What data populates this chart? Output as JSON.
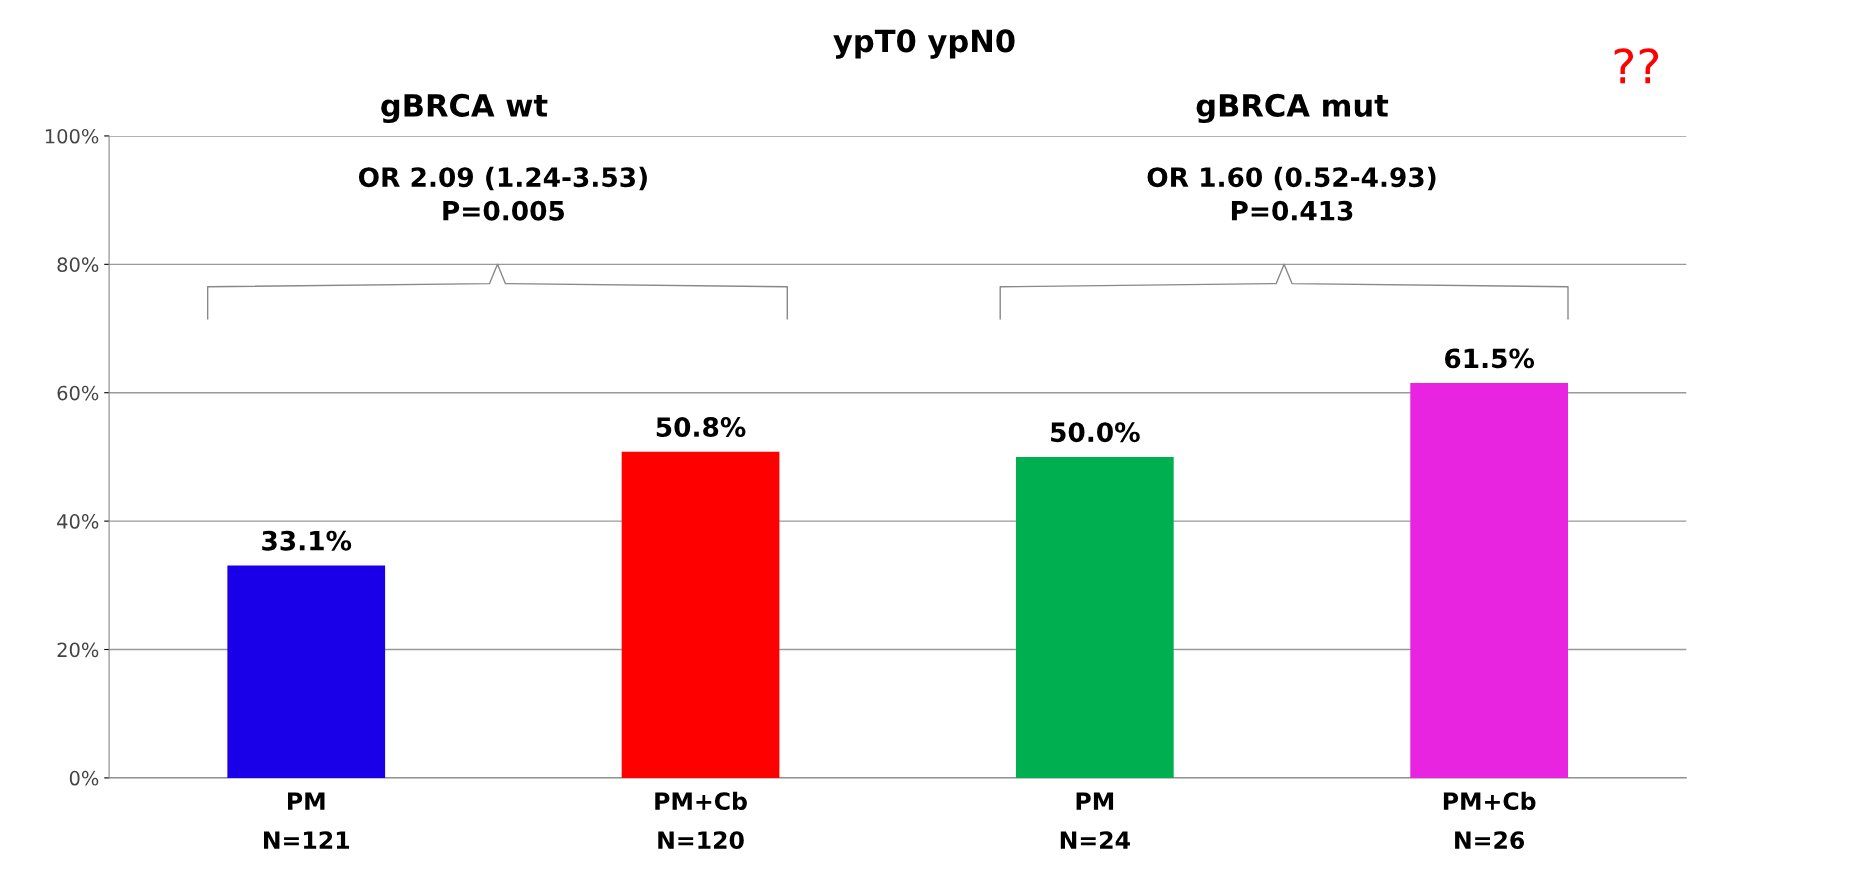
{
  "chart_data": {
    "type": "bar",
    "title": "ypT0 ypN0",
    "categories": [
      "PM\nN=121",
      "PM+Cb\nN=120",
      "PM\nN=24",
      "PM+Cb\nN=26"
    ],
    "values": [
      33.1,
      50.8,
      50.0,
      61.5
    ],
    "colors": [
      "#1a00e8",
      "#ff0000",
      "#00b050",
      "#e824e0"
    ],
    "value_labels": [
      "33.1%",
      "50.8%",
      "50.0%",
      "61.5%"
    ],
    "ylim": [
      0,
      100
    ],
    "yticks": [
      {
        "value": 0,
        "label": "0%"
      },
      {
        "value": 20,
        "label": "20%"
      },
      {
        "value": 40,
        "label": "40%"
      },
      {
        "value": 60,
        "label": "60%"
      },
      {
        "value": 80,
        "label": "80%"
      },
      {
        "value": 100,
        "label": "100%"
      }
    ],
    "grid": "y",
    "annotations": [
      "gBRCA wt",
      "gBRCA mut",
      "OR 2.09 (1.24-3.53)\nP=0.005",
      "OR 1.60 (0.52-4.93)\nP=0.413",
      "??"
    ]
  }
}
